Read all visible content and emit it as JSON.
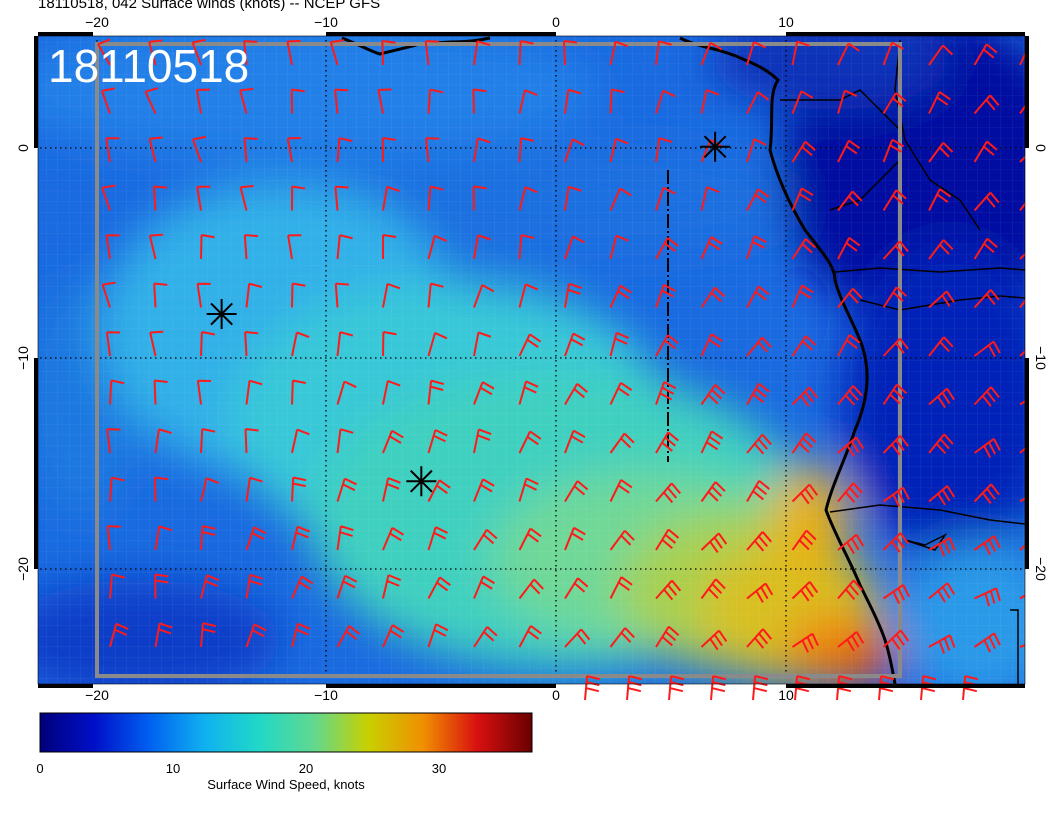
{
  "title": "18110518, 042 Surface winds (knots) -- NCEP GFS",
  "time_stamp": "18110518",
  "map": {
    "lon_range": [
      -22.5,
      20.5
    ],
    "lat_range": [
      -25.5,
      5.5
    ],
    "top_lon_ticks": [
      "−20",
      "−10",
      "0",
      "10"
    ],
    "bottom_lon_ticks": [
      "−20",
      "−10",
      "0",
      "10"
    ],
    "left_lat_ticks": [
      "0",
      "−10",
      "−20"
    ],
    "right_lat_ticks": [
      "0",
      "−10",
      "−20"
    ],
    "barb_color": "#ff1a1a",
    "coast_color": "#000000",
    "markers": [
      {
        "name": "marker-1",
        "lon": 7.0,
        "lat": 0.2
      },
      {
        "name": "marker-2",
        "lon": -14.5,
        "lat": -7.8
      },
      {
        "name": "marker-3",
        "lon": -5.8,
        "lat": -15.8
      }
    ]
  },
  "colorbar": {
    "label": "Surface Wind Speed, knots",
    "ticks": [
      "0",
      "10",
      "20",
      "30"
    ],
    "range": [
      0,
      37
    ],
    "colors": [
      "#00007a",
      "#0010c8",
      "#0060f0",
      "#10b0f0",
      "#20d8c8",
      "#60d890",
      "#c8d000",
      "#f09000",
      "#d81010",
      "#6a0000"
    ]
  }
}
